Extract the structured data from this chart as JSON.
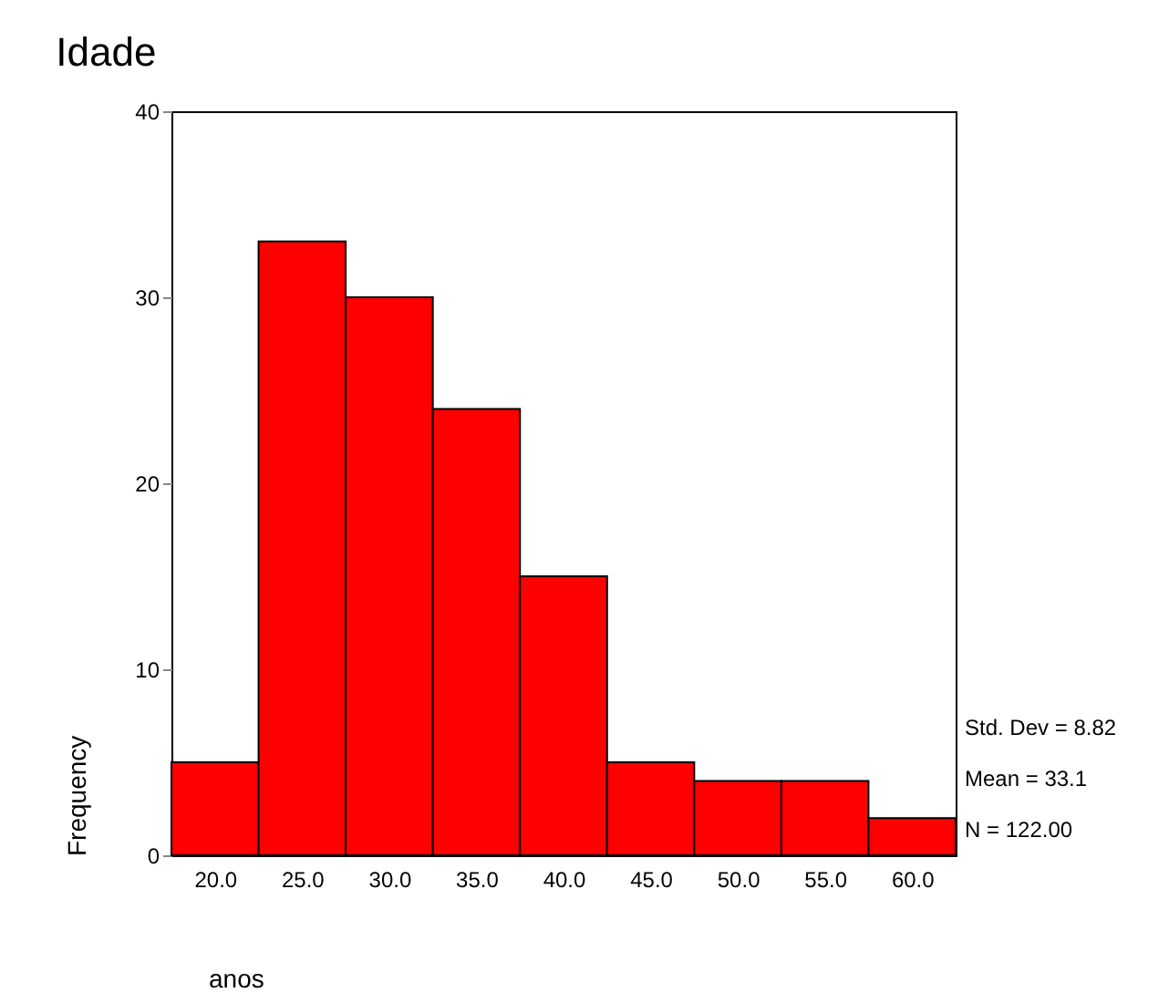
{
  "chart_data": {
    "type": "histogram",
    "title": "Idade",
    "xlabel": "anos",
    "ylabel": "Frequency",
    "bins": [
      17.5,
      22.5,
      27.5,
      32.5,
      37.5,
      42.5,
      47.5,
      52.5,
      57.5,
      62.5
    ],
    "values": [
      5,
      33,
      30,
      24,
      15,
      5,
      4,
      4,
      2
    ],
    "color": "#ff0000",
    "xlim": [
      17.5,
      62.5
    ],
    "xticks": [
      {
        "value": 20,
        "label": "20.0"
      },
      {
        "value": 25,
        "label": "25.0"
      },
      {
        "value": 30,
        "label": "30.0"
      },
      {
        "value": 35,
        "label": "35.0"
      },
      {
        "value": 40,
        "label": "40.0"
      },
      {
        "value": 45,
        "label": "45.0"
      },
      {
        "value": 50,
        "label": "50.0"
      },
      {
        "value": 55,
        "label": "55.0"
      },
      {
        "value": 60,
        "label": "60.0"
      }
    ],
    "ylim": [
      0,
      40
    ],
    "yticks": [
      0,
      10,
      20,
      30,
      40
    ],
    "grid": false,
    "annotations": [
      "Std. Dev = 8.82",
      "Mean = 33.1",
      "N = 122.00"
    ]
  }
}
